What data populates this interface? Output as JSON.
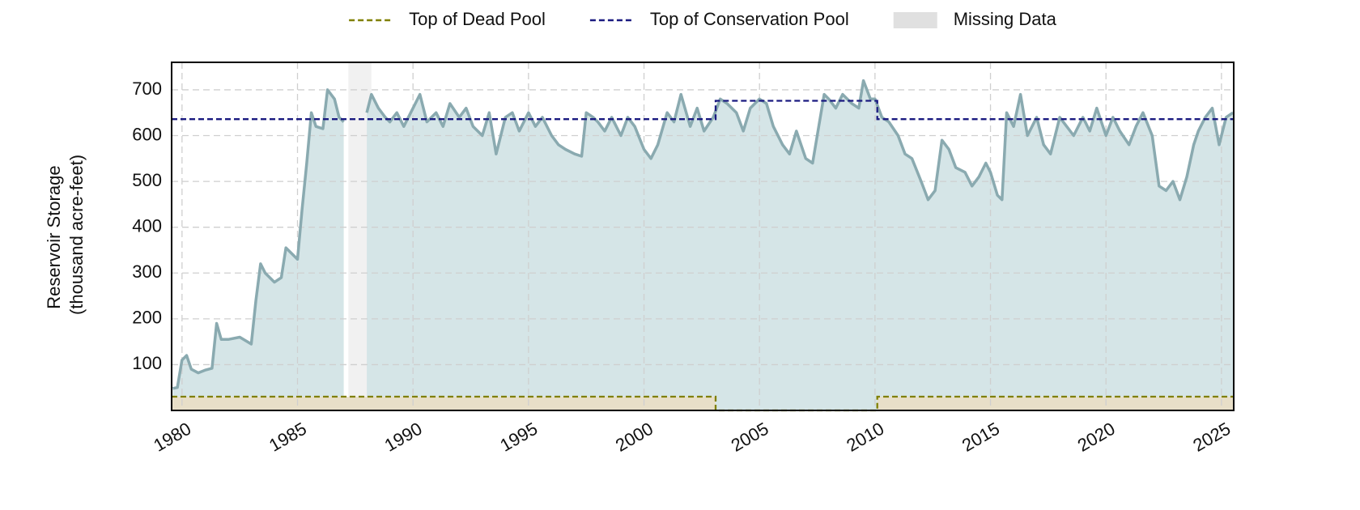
{
  "chart_data": {
    "type": "line",
    "ylabel": [
      "Reservoir Storage",
      "(thousand acre-feet)"
    ],
    "xlim": [
      1979.55,
      2025.53
    ],
    "ylim": [
      0,
      760
    ],
    "xticks": [
      1980,
      1985,
      1990,
      1995,
      2000,
      2005,
      2010,
      2015,
      2020,
      2025
    ],
    "yticks": [
      100,
      200,
      300,
      400,
      500,
      600,
      700
    ],
    "grid": true,
    "legend": "upper center",
    "missing_data": {
      "name": "Missing Data",
      "color": "#e0e0e0",
      "ranges": [
        [
          1987.2,
          1988.2
        ]
      ]
    },
    "storage": {
      "color": "#8aaab0",
      "fill": "#d5e5e7",
      "x": [
        1979.6,
        1979.8,
        1980.0,
        1980.2,
        1980.4,
        1980.7,
        1981.0,
        1981.3,
        1981.5,
        1981.7,
        1982.0,
        1982.5,
        1983.0,
        1983.2,
        1983.4,
        1983.6,
        1984.0,
        1984.3,
        1984.5,
        1984.8,
        1985.0,
        1985.2,
        1985.4,
        1985.6,
        1985.8,
        1986.1,
        1986.3,
        1986.6,
        1986.8,
        1987.0,
        1987.5,
        1988.0,
        1988.2,
        1988.5,
        1988.8,
        1989.0,
        1989.3,
        1989.6,
        1990.0,
        1990.3,
        1990.6,
        1991.0,
        1991.3,
        1991.6,
        1992.0,
        1992.3,
        1992.6,
        1993.0,
        1993.3,
        1993.6,
        1994.0,
        1994.3,
        1994.6,
        1995.0,
        1995.3,
        1995.6,
        1996.0,
        1996.3,
        1996.6,
        1997.0,
        1997.3,
        1997.5,
        1997.8,
        1998.0,
        1998.3,
        1998.6,
        1999.0,
        1999.3,
        1999.6,
        2000.0,
        2000.3,
        2000.6,
        2001.0,
        2001.3,
        2001.6,
        2002.0,
        2002.3,
        2002.6,
        2003.0,
        2003.3,
        2003.6,
        2004.0,
        2004.3,
        2004.6,
        2005.0,
        2005.3,
        2005.6,
        2006.0,
        2006.3,
        2006.6,
        2007.0,
        2007.3,
        2007.5,
        2007.8,
        2008.0,
        2008.3,
        2008.6,
        2009.0,
        2009.3,
        2009.5,
        2009.8,
        2010.0,
        2010.3,
        2010.6,
        2011.0,
        2011.3,
        2011.6,
        2012.0,
        2012.3,
        2012.6,
        2012.9,
        2013.2,
        2013.5,
        2013.9,
        2014.2,
        2014.5,
        2014.8,
        2015.0,
        2015.3,
        2015.5,
        2015.7,
        2016.0,
        2016.3,
        2016.6,
        2017.0,
        2017.3,
        2017.6,
        2018.0,
        2018.3,
        2018.6,
        2019.0,
        2019.3,
        2019.6,
        2020.0,
        2020.3,
        2020.6,
        2021.0,
        2021.3,
        2021.6,
        2022.0,
        2022.3,
        2022.6,
        2022.9,
        2023.2,
        2023.5,
        2023.8,
        2024.0,
        2024.3,
        2024.6,
        2024.9,
        2025.2,
        2025.5
      ],
      "values": [
        48,
        50,
        110,
        120,
        90,
        82,
        88,
        92,
        190,
        155,
        155,
        160,
        145,
        240,
        320,
        300,
        280,
        290,
        355,
        340,
        330,
        440,
        540,
        650,
        620,
        615,
        700,
        680,
        640,
        630,
        null,
        650,
        690,
        660,
        640,
        630,
        650,
        620,
        660,
        690,
        630,
        650,
        620,
        670,
        640,
        660,
        620,
        600,
        650,
        560,
        640,
        650,
        610,
        650,
        620,
        640,
        600,
        580,
        570,
        560,
        555,
        650,
        640,
        630,
        610,
        640,
        600,
        640,
        620,
        570,
        550,
        580,
        650,
        630,
        690,
        620,
        660,
        610,
        640,
        680,
        670,
        650,
        610,
        660,
        680,
        670,
        620,
        580,
        560,
        610,
        550,
        540,
        600,
        690,
        680,
        660,
        690,
        670,
        660,
        720,
        680,
        680,
        640,
        630,
        600,
        560,
        550,
        500,
        460,
        480,
        590,
        570,
        530,
        520,
        490,
        510,
        540,
        520,
        470,
        460,
        650,
        620,
        690,
        600,
        640,
        580,
        560,
        640,
        620,
        600,
        640,
        610,
        660,
        600,
        640,
        610,
        580,
        620,
        650,
        600,
        490,
        480,
        500,
        460,
        510,
        580,
        610,
        640,
        660,
        580,
        640,
        650
      ]
    },
    "series": [
      {
        "name": "Top of Dead Pool",
        "color": "#808000",
        "fill": "#e8dfc8",
        "x": [
          1979.55,
          2003.1,
          2003.1,
          2010.1,
          2010.1,
          2025.53
        ],
        "values": [
          30,
          30,
          0,
          0,
          30,
          30
        ]
      },
      {
        "name": "Top of Conservation Pool",
        "color": "#1a1a80",
        "x": [
          1979.55,
          2003.1,
          2003.1,
          2010.1,
          2010.1,
          2025.53
        ],
        "values": [
          636,
          636,
          676,
          676,
          636,
          636
        ]
      }
    ]
  }
}
